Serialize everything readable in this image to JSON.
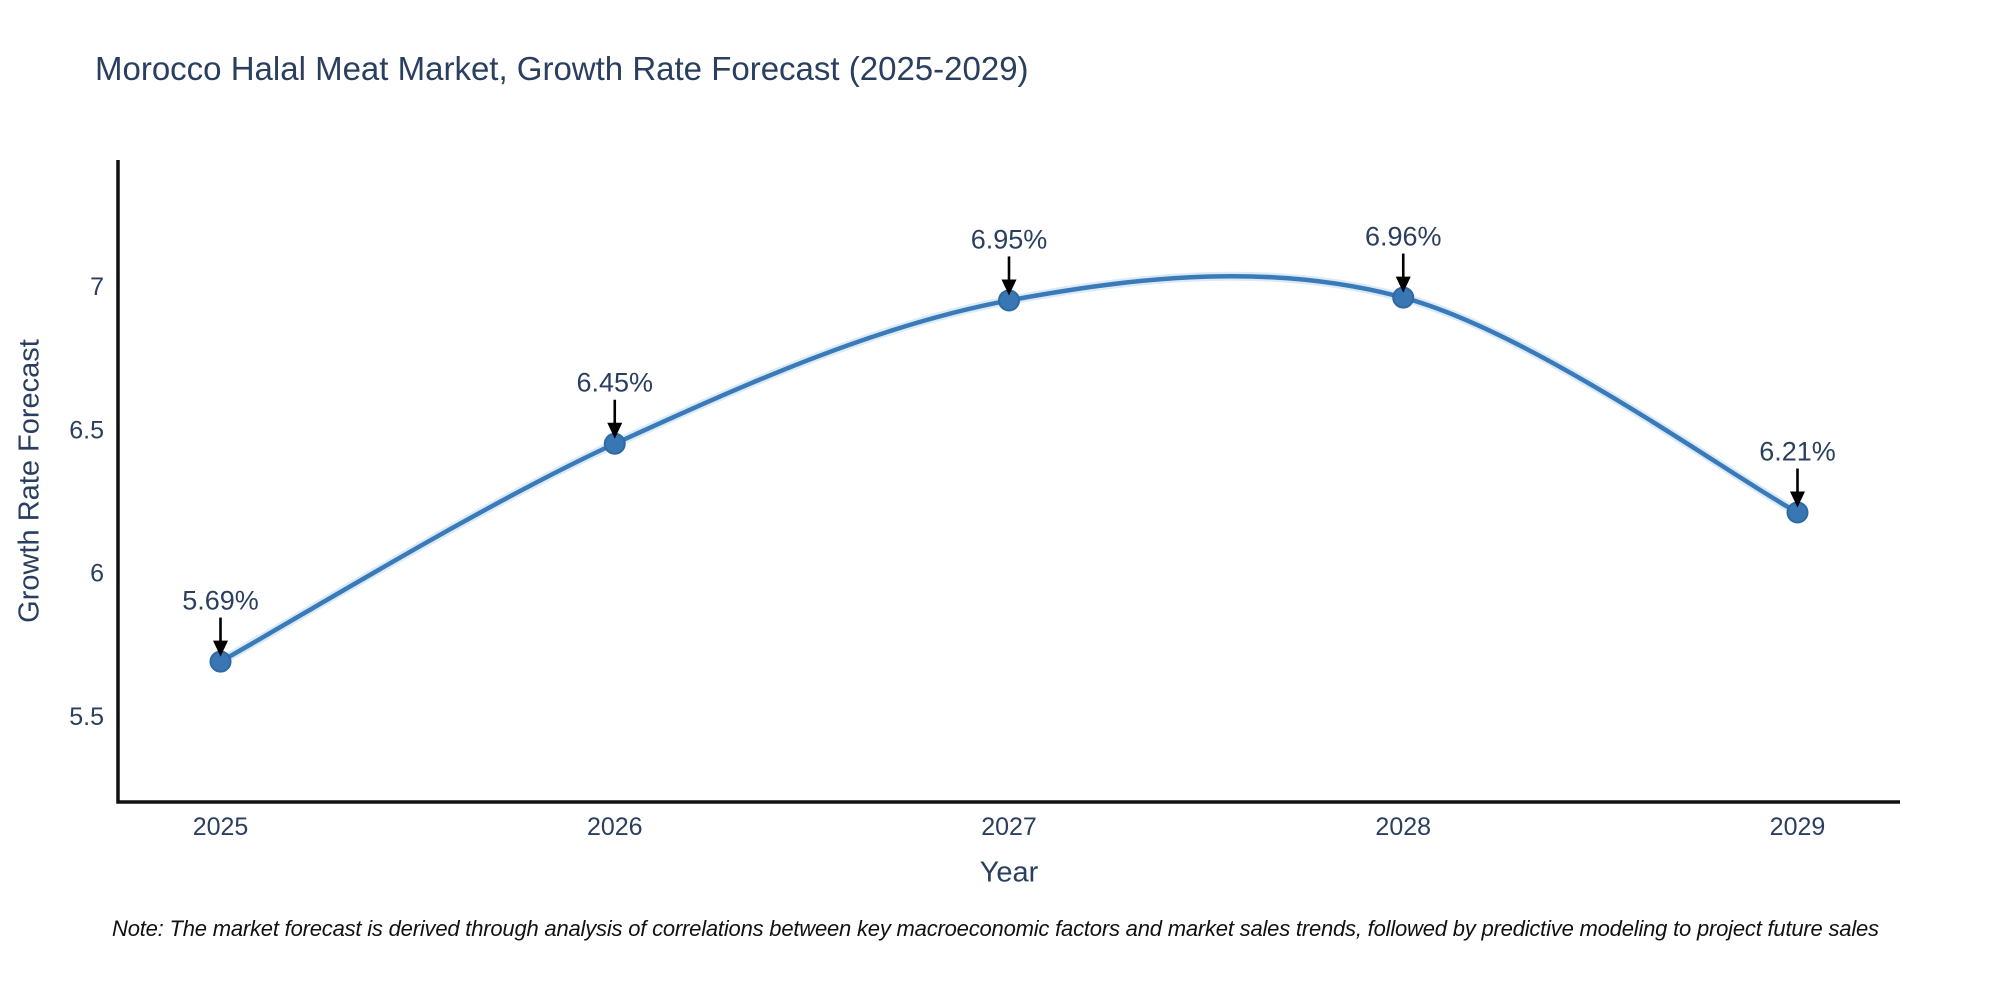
{
  "page": {
    "note": "Note: The market forecast is derived through analysis of correlations between key macroeconomic factors and market sales trends, followed by predictive modeling to project future sales"
  },
  "chart_data": {
    "type": "line",
    "curve": "spline",
    "title": "Morocco Halal Meat Market, Growth Rate Forecast (2025-2029)",
    "xlabel": "Year",
    "ylabel": "Growth Rate Forecast",
    "x": [
      2025,
      2026,
      2027,
      2028,
      2029
    ],
    "series": [
      {
        "name": "Growth Rate Forecast",
        "values": [
          5.69,
          6.45,
          6.95,
          6.96,
          6.21
        ]
      }
    ],
    "point_labels": [
      "5.69%",
      "6.45%",
      "6.95%",
      "6.96%",
      "6.21%"
    ],
    "yticks": [
      5.5,
      6,
      6.5,
      7
    ],
    "ylim": [
      5.2,
      7.44
    ],
    "xlim": [
      2024.74,
      2029.26
    ],
    "grid": false,
    "legend": "none",
    "colors": {
      "line": "#3a7ab8",
      "line_halo": "#bcd8ee",
      "marker": "#3876b4",
      "marker_edge": "#2f6aa3",
      "axis": "#111111",
      "text": "#2a3f5f",
      "annotation_arrow": "#000000",
      "background": "#ffffff"
    }
  }
}
